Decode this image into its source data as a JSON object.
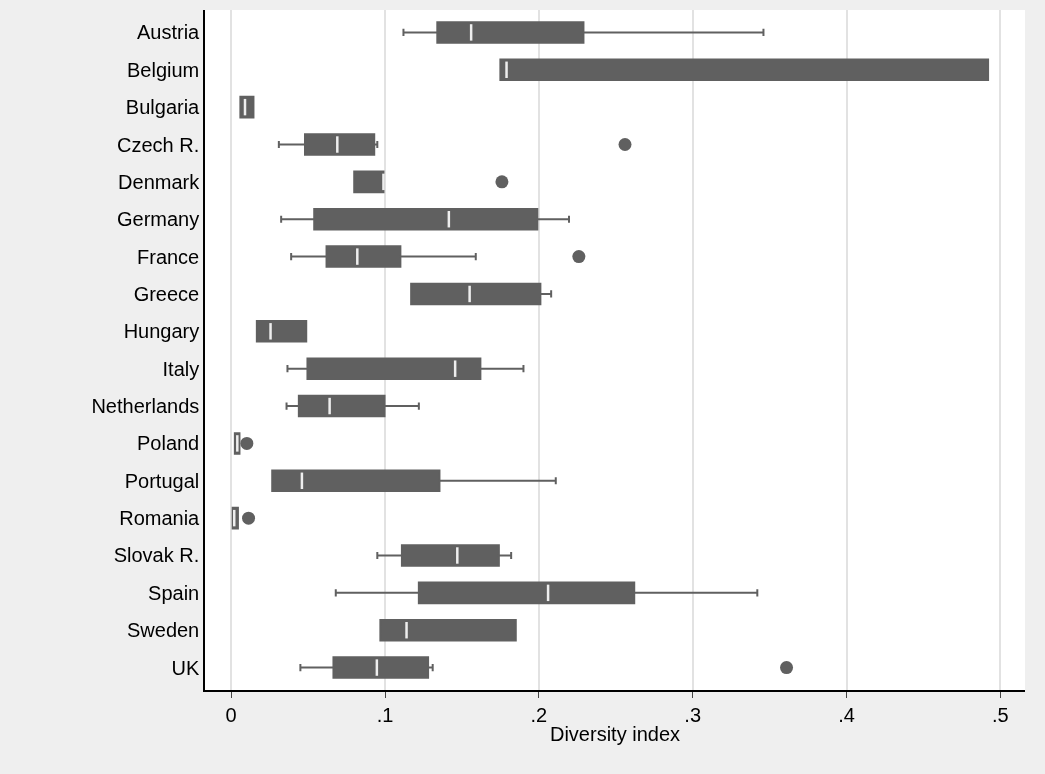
{
  "chart_data": {
    "type": "box",
    "orientation": "horizontal",
    "xlabel": "Diversity index",
    "categories": [
      "Austria",
      "Belgium",
      "Bulgaria",
      "Czech R.",
      "Denmark",
      "Germany",
      "France",
      "Greece",
      "Hungary",
      "Italy",
      "Netherlands",
      "Poland",
      "Portugal",
      "Romania",
      "Slovak R.",
      "Spain",
      "Sweden",
      "UK"
    ],
    "color": "#606060",
    "boxes": [
      {
        "low": 0.112,
        "q1": 0.134,
        "median": 0.156,
        "q3": 0.229,
        "high": 0.346
      },
      {
        "low": 0.175,
        "q1": 0.175,
        "median": 0.179,
        "q3": 0.492,
        "high": 0.492
      },
      {
        "low": 0.006,
        "q1": 0.006,
        "median": 0.009,
        "q3": 0.0145,
        "high": 0.0145
      },
      {
        "low": 0.031,
        "q1": 0.048,
        "median": 0.069,
        "q3": 0.093,
        "high": 0.095,
        "outliers": [
          0.256
        ]
      },
      {
        "low": 0.08,
        "q1": 0.08,
        "median": 0.099,
        "q3": 0.099,
        "high": 0.099,
        "outliers": [
          0.176
        ]
      },
      {
        "low": 0.0325,
        "q1": 0.054,
        "median": 0.1415,
        "q3": 0.199,
        "high": 0.2196
      },
      {
        "low": 0.039,
        "q1": 0.062,
        "median": 0.082,
        "q3": 0.11,
        "high": 0.159,
        "outliers": [
          0.226
        ]
      },
      {
        "low": 0.117,
        "q1": 0.117,
        "median": 0.155,
        "q3": 0.201,
        "high": 0.208
      },
      {
        "low": 0.0167,
        "q1": 0.0167,
        "median": 0.0256,
        "q3": 0.0488,
        "high": 0.0488
      },
      {
        "low": 0.0366,
        "q1": 0.0496,
        "median": 0.1456,
        "q3": 0.162,
        "high": 0.19
      },
      {
        "low": 0.036,
        "q1": 0.044,
        "median": 0.064,
        "q3": 0.0997,
        "high": 0.122
      },
      {
        "low": 0.0024,
        "q1": 0.0024,
        "median": 0.004,
        "q3": 0.0054,
        "high": 0.0054,
        "outliers": [
          0.0102
        ]
      },
      {
        "low": 0.0267,
        "q1": 0.0267,
        "median": 0.046,
        "q3": 0.1354,
        "high": 0.211
      },
      {
        "low": 0.001,
        "q1": 0.001,
        "median": 0.002,
        "q3": 0.0044,
        "high": 0.0044,
        "outliers": [
          0.0113
        ]
      },
      {
        "low": 0.095,
        "q1": 0.111,
        "median": 0.147,
        "q3": 0.174,
        "high": 0.182
      },
      {
        "low": 0.068,
        "q1": 0.122,
        "median": 0.206,
        "q3": 0.262,
        "high": 0.342
      },
      {
        "low": 0.097,
        "q1": 0.097,
        "median": 0.114,
        "q3": 0.185,
        "high": 0.185
      },
      {
        "low": 0.045,
        "q1": 0.0665,
        "median": 0.0947,
        "q3": 0.128,
        "high": 0.131,
        "outliers": [
          0.361
        ]
      }
    ],
    "xlim": [
      -0.017,
      0.516
    ],
    "xticks": [
      0,
      {
        "value": 0.1,
        "label": ".1"
      },
      {
        "value": 0.2,
        "label": ".2"
      },
      {
        "value": 0.3,
        "label": ".3"
      },
      {
        "value": 0.4,
        "label": ".4"
      },
      {
        "value": 0.5,
        "label": ".5"
      }
    ],
    "grid": "x",
    "marker": "circle"
  }
}
